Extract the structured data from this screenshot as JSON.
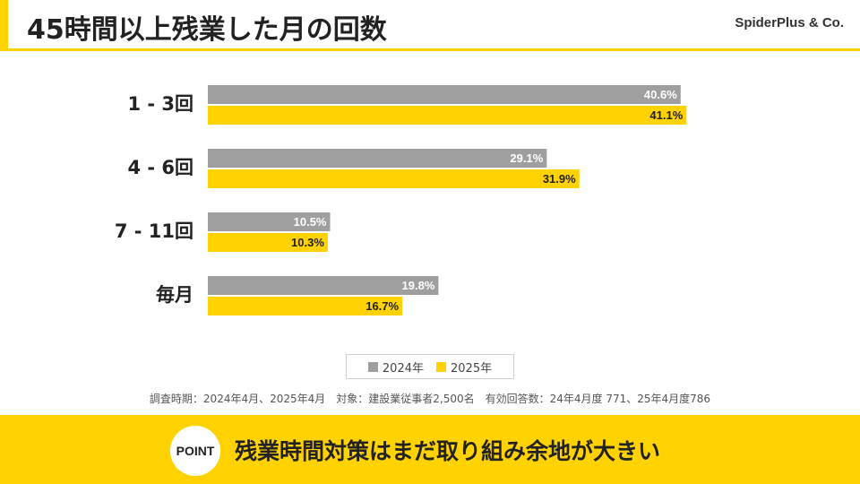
{
  "header": {
    "title": "45時間以上残業した月の回数",
    "logo": "SpiderPlus & Co."
  },
  "colors": {
    "accent": "#ffd200",
    "series_2024": "#a09fa0",
    "series_2025": "#ffd200"
  },
  "chart_data": {
    "type": "bar",
    "orientation": "horizontal",
    "categories": [
      "1 - 3回",
      "4 - 6回",
      "7 - 11回",
      "毎月"
    ],
    "series": [
      {
        "name": "2024年",
        "values": [
          40.6,
          29.1,
          10.5,
          19.8
        ],
        "labels": [
          "40.6%",
          "29.1%",
          "10.5%",
          "19.8%"
        ]
      },
      {
        "name": "2025年",
        "values": [
          41.1,
          31.9,
          10.3,
          16.7
        ],
        "labels": [
          "41.1%",
          "31.9%",
          "10.3%",
          "16.7%"
        ]
      }
    ],
    "xlim": [
      0,
      100
    ],
    "unit": "%",
    "legend": "bottom-center",
    "grid": false
  },
  "legend": {
    "items": [
      {
        "label": "2024年"
      },
      {
        "label": "2025年"
      }
    ]
  },
  "footnote": "調査時期：2024年4月、2025年4月　対象：建設業従事者2,500名　有効回答数：24年4月度 771、25年4月度786",
  "point": {
    "badge": "POINT",
    "text": "残業時間対策はまだ取り組み余地が大きい"
  }
}
